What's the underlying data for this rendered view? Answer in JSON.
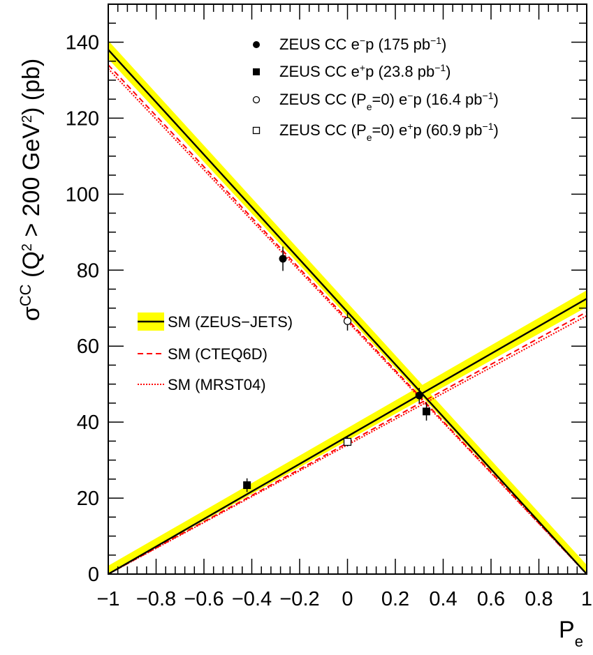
{
  "chart_data": {
    "type": "scatter",
    "xlabel": {
      "main": "P",
      "sub": "e"
    },
    "ylabel": {
      "sigma": "σ",
      "sigma_sup": "CC",
      "open": " (Q",
      "q_sup": "2",
      "mid": " > 200 GeV",
      "gev_sup": "2",
      "close": ") (pb)"
    },
    "xlim": [
      -1,
      1
    ],
    "ylim": [
      0,
      150
    ],
    "x_ticks": [
      {
        "value": -1,
        "label": "−1"
      },
      {
        "value": -0.8,
        "label": "−0.8"
      },
      {
        "value": -0.6,
        "label": "−0.6"
      },
      {
        "value": -0.4,
        "label": "−0.4"
      },
      {
        "value": -0.2,
        "label": "−0.2"
      },
      {
        "value": 0,
        "label": "0"
      },
      {
        "value": 0.2,
        "label": "0.2"
      },
      {
        "value": 0.4,
        "label": "0.4"
      },
      {
        "value": 0.6,
        "label": "0.6"
      },
      {
        "value": 0.8,
        "label": "0.8"
      },
      {
        "value": 1,
        "label": "1"
      }
    ],
    "y_ticks": [
      {
        "value": 0,
        "label": "0"
      },
      {
        "value": 20,
        "label": "20"
      },
      {
        "value": 40,
        "label": "40"
      },
      {
        "value": 60,
        "label": "60"
      },
      {
        "value": 80,
        "label": "80"
      },
      {
        "value": 100,
        "label": "100"
      },
      {
        "value": 120,
        "label": "120"
      },
      {
        "value": 140,
        "label": "140"
      }
    ],
    "data_series": [
      {
        "key": "em-175",
        "marker": "filled-circle",
        "legend": {
          "pre": "ZEUS CC e",
          "sup": "−",
          "mid": "p (175 pb",
          "sup2": "−1",
          "post": ")"
        },
        "points": [
          {
            "x": -0.27,
            "y": 83.0,
            "err": 3.2
          },
          {
            "x": 0.3,
            "y": 47.0,
            "err": 2.0
          }
        ]
      },
      {
        "key": "ep-23.8",
        "marker": "filled-square",
        "legend": {
          "pre": "ZEUS CC e",
          "sup": "+",
          "mid": "p (23.8 pb",
          "sup2": "−1",
          "post": ")"
        },
        "points": [
          {
            "x": -0.42,
            "y": 23.4,
            "err": 1.8
          },
          {
            "x": 0.33,
            "y": 42.8,
            "err": 2.4
          }
        ]
      },
      {
        "key": "em-unpol",
        "marker": "open-circle",
        "legend": {
          "pre": "ZEUS CC (P",
          "sub": "e",
          "mid": "=0) e",
          "sup": "−",
          "post": "p (16.4 pb",
          "sup2": "−1",
          "post2": ")"
        },
        "points": [
          {
            "x": 0.0,
            "y": 66.6,
            "err": 2.5
          }
        ]
      },
      {
        "key": "ep-unpol",
        "marker": "open-square",
        "legend": {
          "pre": "ZEUS CC (P",
          "sub": "e",
          "mid": "=0) e",
          "sup": "+",
          "post": "p (60.9 pb",
          "sup2": "−1",
          "post2": ")"
        },
        "points": [
          {
            "x": 0.0,
            "y": 34.8,
            "err": 1.2
          }
        ]
      }
    ],
    "predictions": [
      {
        "key": "zeus-jets",
        "label": "SM (ZEUS−JETS)",
        "style": "solid",
        "band": true,
        "line_color": "#000000",
        "band_color": "#ffff00",
        "lines": [
          {
            "x": [
              -1,
              1
            ],
            "y": [
              138.0,
              0.0
            ],
            "band_half": 2.4
          },
          {
            "x": [
              -1,
              1
            ],
            "y": [
              0.0,
              72.5
            ],
            "band_half": 2.2
          }
        ]
      },
      {
        "key": "cteq6d",
        "label": "SM (CTEQ6D)",
        "style": "dashed",
        "band": false,
        "line_color": "#ff0000",
        "lines": [
          {
            "x": [
              -1,
              1
            ],
            "y": [
              134.0,
              0.0
            ]
          },
          {
            "x": [
              -1,
              1
            ],
            "y": [
              0.0,
              69.0
            ]
          }
        ]
      },
      {
        "key": "mrst04",
        "label": "SM (MRST04)",
        "style": "dotted",
        "band": false,
        "line_color": "#ff0000",
        "lines": [
          {
            "x": [
              -1,
              1
            ],
            "y": [
              133.0,
              0.0
            ]
          },
          {
            "x": [
              -1,
              1
            ],
            "y": [
              0.0,
              68.0
            ]
          }
        ]
      }
    ],
    "grid": false,
    "legend_placement": [
      "top-right",
      "middle-left"
    ]
  }
}
